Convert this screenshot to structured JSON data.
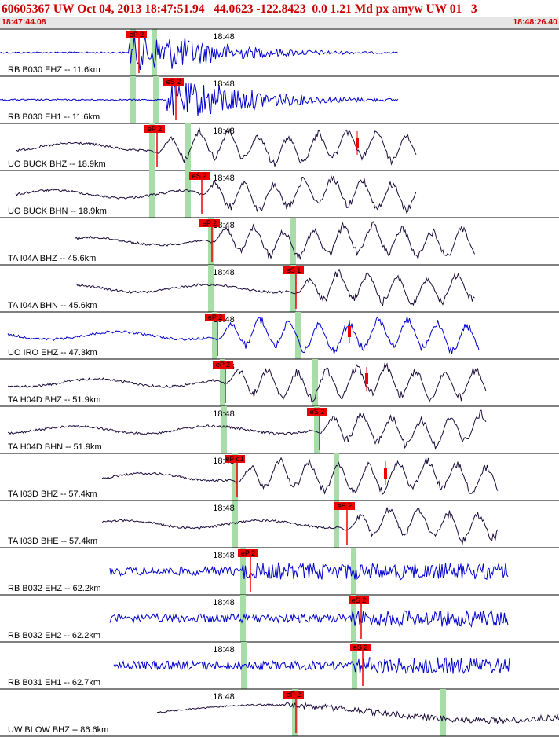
{
  "header": {
    "title": "60605367 UW Oct 04, 2013 18:47:51.94   44.0623 -122.8423  0.0 1.21 Md px amyw UW 01   3",
    "time_start": "18:47:44.08",
    "time_end": "18:48:26.40",
    "minute_tick": "18:48"
  },
  "colors": {
    "title": "#cc0000",
    "trace_blue": "#0000cc",
    "trace_dark": "#1a0a3a",
    "pick_box": "#ee0000",
    "pick_window": "#a8dca8",
    "panel_border": "#000000",
    "time_bar": "#e6e6e6"
  },
  "chart_data": {
    "type": "seismogram",
    "time_axis": {
      "start": "18:47:44.08",
      "end": "18:48:26.40",
      "tick_label": "18:48"
    },
    "channels": [
      {
        "label": "RB B030 EHZ -- 11.6km",
        "color": "blue",
        "pick": "eP 2",
        "signal": "short-period"
      },
      {
        "label": "RB B030 EH1 -- 11.6km",
        "color": "blue",
        "pick": "eS 2",
        "signal": "short-period"
      },
      {
        "label": "UO BUCK BHZ -- 18.9km",
        "color": "dark",
        "pick": "eP 2",
        "signal": "broadband"
      },
      {
        "label": "UO BUCK BHN -- 18.9km",
        "color": "dark",
        "pick": "eS 2",
        "signal": "broadband"
      },
      {
        "label": "TA I04A BHZ -- 45.6km",
        "color": "dark",
        "pick": "eP 2",
        "signal": "broadband"
      },
      {
        "label": "TA I04A BHN -- 45.6km",
        "color": "dark",
        "pick": "eS 1",
        "signal": "broadband"
      },
      {
        "label": "UO IRO EHZ -- 47.3km",
        "color": "blue",
        "pick": "eP 2",
        "signal": "mixed"
      },
      {
        "label": "TA H04D BHZ -- 51.9km",
        "color": "dark",
        "pick": "eP 2",
        "signal": "broadband"
      },
      {
        "label": "TA H04D BHN -- 51.9km",
        "color": "dark",
        "pick": "eS 2",
        "signal": "broadband"
      },
      {
        "label": "TA I03D BHZ -- 57.4km",
        "color": "dark",
        "pick": "eP d1",
        "signal": "broadband"
      },
      {
        "label": "TA I03D BHE -- 57.4km",
        "color": "dark",
        "pick": "eS 2",
        "signal": "broadband"
      },
      {
        "label": "RB B032 EHZ -- 62.2km",
        "color": "blue",
        "pick": "eP 2",
        "signal": "noisy"
      },
      {
        "label": "RB B032 EH2 -- 62.2km",
        "color": "blue",
        "pick": "eS 2",
        "signal": "noisy"
      },
      {
        "label": "RB B031 EH1 -- 62.7km",
        "color": "blue",
        "pick": "eS 2",
        "signal": "noisy"
      },
      {
        "label": "UW BLOW BHZ -- 86.6km",
        "color": "dark",
        "pick": "eP 2",
        "signal": "long"
      }
    ]
  }
}
